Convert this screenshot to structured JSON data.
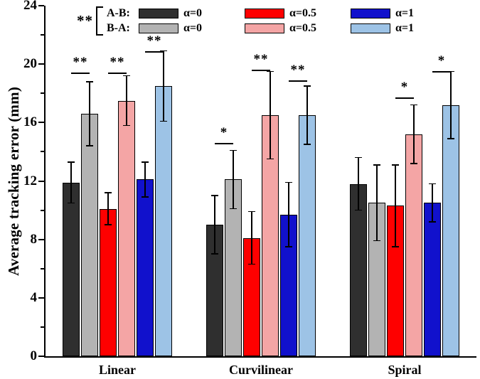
{
  "chart_data": {
    "type": "bar",
    "title": "",
    "ylabel": "Average tracking error (mm)",
    "xlabel": "",
    "ylim": [
      0,
      24
    ],
    "yticks": [
      0,
      4,
      8,
      12,
      16,
      20,
      24
    ],
    "minor_tick_step": 2,
    "grid": false,
    "legend_position": "top-inside",
    "categories": [
      "Linear",
      "Curvilinear",
      "Spiral"
    ],
    "series": [
      {
        "name": "A-B α=0",
        "direction": "A-B",
        "alpha_label": "α=0",
        "color": "#2f2f2f",
        "values": [
          11.9,
          9.0,
          11.8
        ],
        "errors": [
          1.4,
          2.0,
          1.8
        ]
      },
      {
        "name": "B-A α=0",
        "direction": "B-A",
        "alpha_label": "α=0",
        "color": "#b3b3b3",
        "values": [
          16.6,
          12.1,
          10.5
        ],
        "errors": [
          2.2,
          2.0,
          2.6
        ]
      },
      {
        "name": "A-B α=0.5",
        "direction": "A-B",
        "alpha_label": "α=0.5",
        "color": "#fe0000",
        "values": [
          10.1,
          8.1,
          10.3
        ],
        "errors": [
          1.1,
          1.8,
          2.8
        ]
      },
      {
        "name": "B-A α=0.5",
        "direction": "B-A",
        "alpha_label": "α=0.5",
        "color": "#f4a5a5",
        "values": [
          17.5,
          16.5,
          15.2
        ],
        "errors": [
          1.7,
          3.0,
          2.0
        ]
      },
      {
        "name": "A-B α=1",
        "direction": "A-B",
        "alpha_label": "α=1",
        "color": "#1111cc",
        "values": [
          12.1,
          9.7,
          10.5
        ],
        "errors": [
          1.2,
          2.2,
          1.3
        ]
      },
      {
        "name": "B-A α=1",
        "direction": "B-A",
        "alpha_label": "α=1",
        "color": "#9dc3e6",
        "values": [
          18.5,
          16.5,
          17.2
        ],
        "errors": [
          2.4,
          2.0,
          2.3
        ]
      }
    ],
    "significance": [
      {
        "group": 0,
        "bars": [
          0,
          1
        ],
        "label": "**",
        "y": 19.4
      },
      {
        "group": 0,
        "bars": [
          2,
          3
        ],
        "label": "**",
        "y": 19.4
      },
      {
        "group": 0,
        "bars": [
          4,
          5
        ],
        "label": "**",
        "y": 20.9
      },
      {
        "group": 1,
        "bars": [
          0,
          1
        ],
        "label": "*",
        "y": 14.6
      },
      {
        "group": 1,
        "bars": [
          2,
          3
        ],
        "label": "**",
        "y": 19.6
      },
      {
        "group": 1,
        "bars": [
          4,
          5
        ],
        "label": "**",
        "y": 18.9
      },
      {
        "group": 2,
        "bars": [
          2,
          3
        ],
        "label": "*",
        "y": 17.7
      },
      {
        "group": 2,
        "bars": [
          4,
          5
        ],
        "label": "*",
        "y": 19.5
      }
    ],
    "legend": {
      "stars": "**",
      "rows": [
        {
          "label": "A-B:",
          "items": [
            {
              "color": "#2f2f2f",
              "label": "α=0"
            },
            {
              "color": "#fe0000",
              "label": "α=0.5"
            },
            {
              "color": "#1111cc",
              "label": "α=1"
            }
          ]
        },
        {
          "label": "B-A:",
          "items": [
            {
              "color": "#b3b3b3",
              "label": "α=0"
            },
            {
              "color": "#f4a5a5",
              "label": "α=0.5"
            },
            {
              "color": "#9dc3e6",
              "label": "α=1"
            }
          ]
        }
      ]
    }
  }
}
